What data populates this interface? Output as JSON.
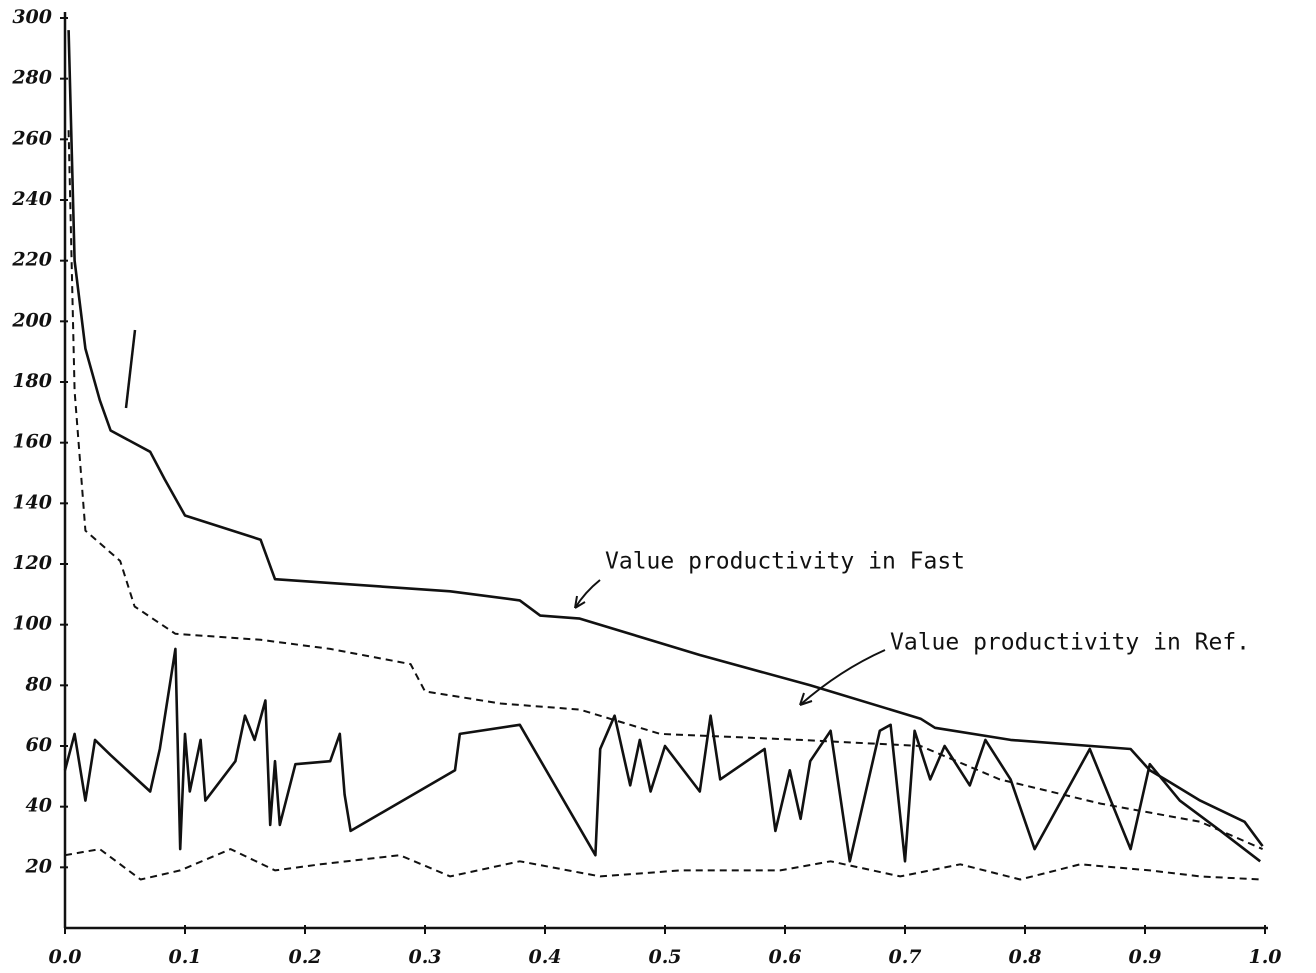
{
  "chart_data": {
    "type": "line",
    "xlim": [
      0,
      1
    ],
    "ylim": [
      0,
      300
    ],
    "xticks": [
      {
        "value": 0,
        "label": "0.0"
      },
      0.1,
      0.2,
      0.3,
      0.4,
      0.5,
      0.6,
      0.7,
      0.8,
      0.9,
      {
        "value": 1,
        "label": "1.0"
      }
    ],
    "yticks": [
      20,
      40,
      60,
      80,
      100,
      120,
      140,
      160,
      180,
      200,
      220,
      240,
      260,
      280,
      300
    ],
    "grid": false,
    "annotations": [
      "Value productivity in Fast",
      "Value productivity in Ref."
    ],
    "series": [
      {
        "color": "#111111",
        "style": "solid",
        "x": [
          0.003,
          0.008,
          0.017,
          0.029,
          0.038,
          0.071,
          0.083,
          0.1,
          0.163,
          0.175,
          0.321,
          0.379,
          0.396,
          0.429,
          0.529,
          0.621,
          0.713,
          0.725,
          0.788,
          0.888,
          0.904,
          0.921,
          0.946,
          0.983,
          0.998
        ],
        "values": [
          296,
          220,
          191,
          174,
          164,
          157,
          148,
          136,
          128,
          115,
          111,
          108,
          103,
          102,
          90,
          80,
          69,
          66,
          62,
          59,
          52,
          48,
          42,
          35,
          27
        ]
      },
      {
        "color": "#111111",
        "style": "dashed",
        "x": [
          0.003,
          0.008,
          0.017,
          0.046,
          0.058,
          0.092,
          0.163,
          0.221,
          0.288,
          0.3,
          0.363,
          0.429,
          0.496,
          0.613,
          0.713,
          0.779,
          0.863,
          0.946,
          0.998
        ],
        "values": [
          263,
          177,
          131,
          121,
          106,
          97,
          95,
          92,
          87,
          78,
          74,
          72,
          64,
          62,
          60,
          49,
          41,
          35,
          26
        ]
      },
      {
        "color": "#111111",
        "style": "solid",
        "x": [
          0,
          0.008,
          0.017,
          0.025,
          0.038,
          0.071,
          0.079,
          0.092,
          0.096,
          0.1,
          0.104,
          0.113,
          0.117,
          0.142,
          0.15,
          0.158,
          0.167,
          0.171,
          0.175,
          0.179,
          0.192,
          0.221,
          0.229,
          0.233,
          0.238,
          0.325,
          0.329,
          0.379,
          0.442,
          0.446,
          0.458,
          0.471,
          0.479,
          0.488,
          0.5,
          0.529,
          0.538,
          0.546,
          0.583,
          0.592,
          0.604,
          0.613,
          0.621,
          0.638,
          0.654,
          0.679,
          0.688,
          0.7,
          0.708,
          0.721,
          0.733,
          0.754,
          0.767,
          0.788,
          0.808,
          0.854,
          0.888,
          0.904,
          0.929,
          0.963,
          0.996
        ],
        "values": [
          52,
          64,
          42,
          62,
          57,
          45,
          59,
          92,
          26,
          64,
          45,
          62,
          42,
          55,
          70,
          62,
          75,
          34,
          55,
          34,
          54,
          55,
          64,
          44,
          32,
          52,
          64,
          67,
          24,
          59,
          70,
          47,
          62,
          45,
          60,
          45,
          70,
          49,
          59,
          32,
          52,
          36,
          55,
          65,
          22,
          65,
          67,
          22,
          65,
          49,
          60,
          47,
          62,
          49,
          26,
          59,
          26,
          54,
          42,
          32,
          22
        ]
      },
      {
        "color": "#111111",
        "style": "dashed",
        "x": [
          0,
          0.029,
          0.063,
          0.096,
          0.138,
          0.175,
          0.213,
          0.279,
          0.321,
          0.379,
          0.446,
          0.513,
          0.596,
          0.638,
          0.696,
          0.746,
          0.796,
          0.846,
          0.904,
          0.946,
          0.996
        ],
        "values": [
          24,
          26,
          16,
          19,
          26,
          19,
          21,
          24,
          17,
          22,
          17,
          19,
          19,
          22,
          17,
          21,
          16,
          21,
          19,
          17,
          16
        ]
      }
    ]
  }
}
